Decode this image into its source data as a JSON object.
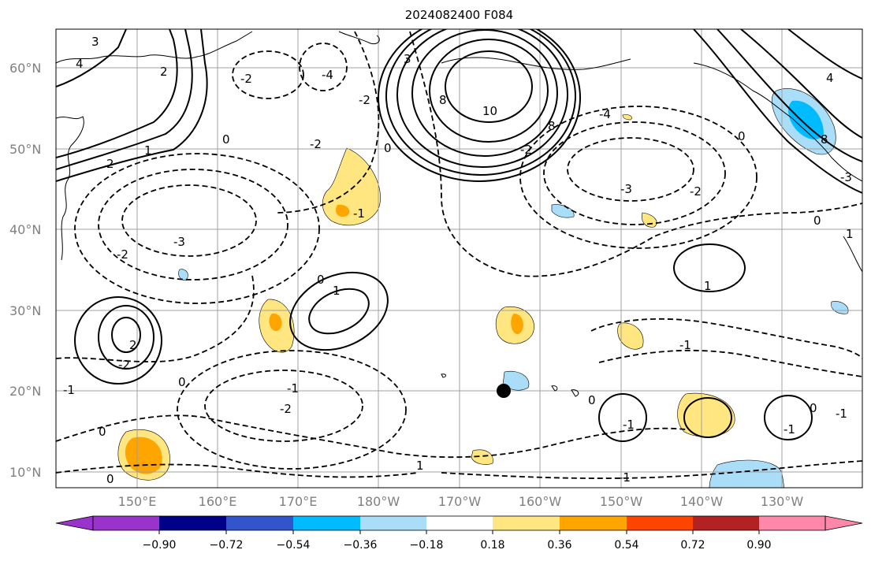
{
  "title": "2024082400 F084",
  "map": {
    "lat_labels": [
      "60°N",
      "50°N",
      "40°N",
      "30°N",
      "20°N",
      "10°N"
    ],
    "lon_labels": [
      "150°E",
      "160°E",
      "170°E",
      "180°W",
      "170°W",
      "160°W",
      "150°W",
      "140°W",
      "130°W"
    ],
    "contour_labels": [
      "3",
      "4",
      "2",
      "0",
      "-2",
      "-4",
      "3",
      "-2",
      "0",
      "-3",
      "8",
      "10",
      "8",
      "-2",
      "-4",
      "-2",
      "-3",
      "-2",
      "4",
      "8",
      "0",
      "1",
      "2",
      "0",
      "-3",
      "-2",
      "-1",
      "0",
      "1",
      "-1",
      "1",
      "2",
      "-2",
      "-1",
      "0",
      "-1",
      "-2",
      "0",
      "0",
      "-1",
      "0",
      "-1",
      "1",
      "-1",
      "0",
      "-1",
      "1"
    ],
    "marker": "storm-center-dot"
  },
  "colorbar": {
    "tick_labels": [
      "−0.90",
      "−0.72",
      "−0.54",
      "−0.36",
      "−0.18",
      "0.18",
      "0.36",
      "0.54",
      "0.72",
      "0.90"
    ],
    "colors": [
      "#9933cc",
      "#000088",
      "#3355cc",
      "#00bbff",
      "#aaddf8",
      "#ffffff",
      "#ffe680",
      "#ffa500",
      "#ff4400",
      "#b22222",
      "#ff88aa"
    ]
  }
}
